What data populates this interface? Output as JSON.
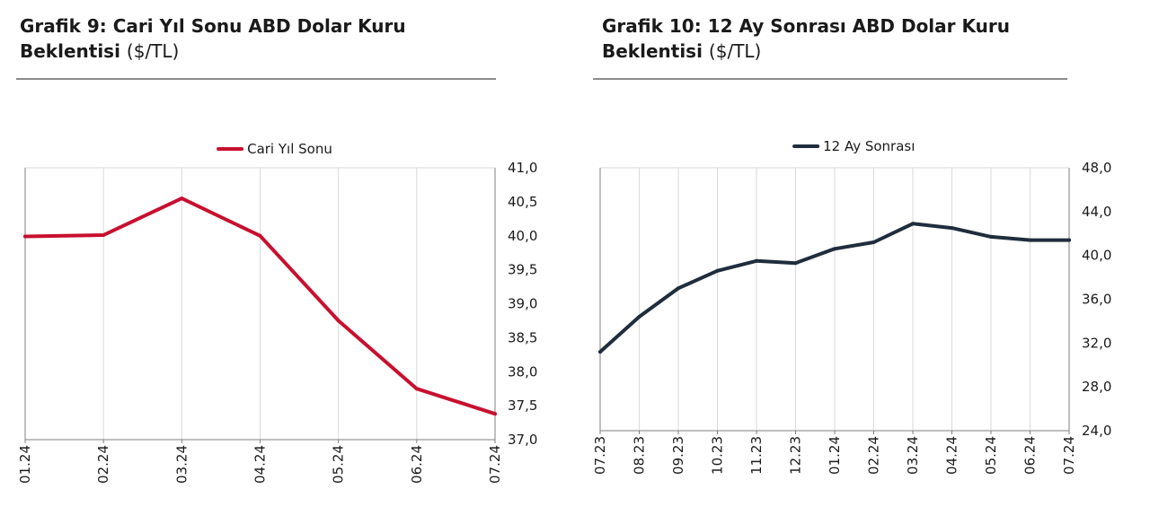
{
  "charts": [
    {
      "title_bold": "Grafik 9: Cari Yıl Sonu ABD Dolar Kuru Beklentisi",
      "title_unit": "($/TL)"
    },
    {
      "title_bold": "Grafik 10: 12 Ay Sonrası ABD Dolar Kuru Beklentisi",
      "title_unit": "($/TL)"
    }
  ],
  "chart_data": [
    {
      "type": "line",
      "title": "Grafik 9: Cari Yıl Sonu ABD Dolar Kuru Beklentisi ($/TL)",
      "categories": [
        "01.24",
        "02.24",
        "03.24",
        "04.24",
        "05.24",
        "06.24",
        "07.24"
      ],
      "series": [
        {
          "name": "Cari Yıl Sonu",
          "values": [
            39.99,
            40.01,
            40.55,
            40.0,
            38.75,
            37.75,
            37.38
          ],
          "color": "#c8102e"
        }
      ],
      "yticks": [
        "41,0",
        "40,5",
        "40,0",
        "39,5",
        "39,0",
        "38,5",
        "38,0",
        "37,5",
        "37,0"
      ],
      "ylim": [
        37.0,
        41.0
      ],
      "y_axis_side": "right",
      "grid": "vertical",
      "legend": "top-center"
    },
    {
      "type": "line",
      "title": "Grafik 10: 12 Ay Sonrası ABD Dolar Kuru Beklentisi ($/TL)",
      "categories": [
        "07.23",
        "08.23",
        "09.23",
        "10.23",
        "11.23",
        "12.23",
        "01.24",
        "02.24",
        "03.24",
        "04.24",
        "05.24",
        "06.24",
        "07.24"
      ],
      "series": [
        {
          "name": "12 Ay Sonrası",
          "values": [
            31.2,
            34.4,
            37.0,
            38.6,
            39.5,
            39.3,
            40.6,
            41.2,
            42.9,
            42.5,
            41.7,
            41.4,
            41.4
          ],
          "color": "#1f2d3d"
        }
      ],
      "yticks": [
        "48,0",
        "44,0",
        "40,0",
        "36,0",
        "32,0",
        "28,0",
        "24,0"
      ],
      "ylim": [
        24.0,
        48.0
      ],
      "y_axis_side": "right",
      "grid": "vertical",
      "legend": "top-center"
    }
  ]
}
